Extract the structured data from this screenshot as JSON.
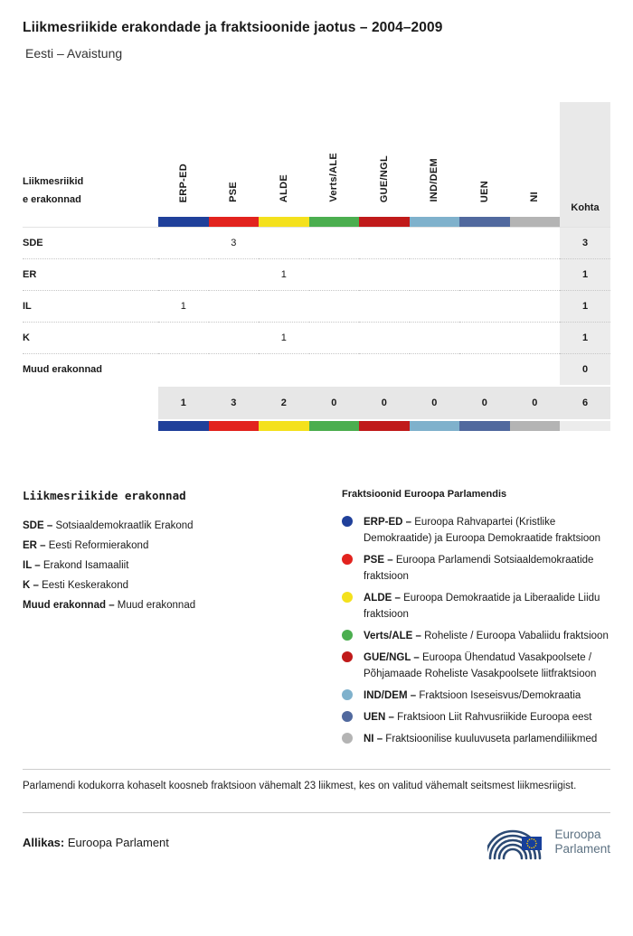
{
  "header": {
    "title": "Liikmesriikide erakondade ja fraktsioonide jaotus – 2004–2009",
    "subtitle": "Eesti – Avaistung"
  },
  "table": {
    "corner_label": "Liikmesriikide erakonnad",
    "seats_label": "Kohta",
    "groups": [
      {
        "id": "ERP-ED",
        "color": "#20409a"
      },
      {
        "id": "PSE",
        "color": "#e2231e"
      },
      {
        "id": "ALDE",
        "color": "#f4e11d"
      },
      {
        "id": "Verts/ALE",
        "color": "#4bae4f"
      },
      {
        "id": "GUE/NGL",
        "color": "#c01a1a"
      },
      {
        "id": "IND/DEM",
        "color": "#7fb1cc"
      },
      {
        "id": "UEN",
        "color": "#51699e"
      },
      {
        "id": "NI",
        "color": "#b4b4b4"
      }
    ],
    "rows": [
      {
        "label": "SDE",
        "values": [
          "",
          "3",
          "",
          "",
          "",
          "",
          "",
          ""
        ],
        "total": "3"
      },
      {
        "label": "ER",
        "values": [
          "",
          "",
          "1",
          "",
          "",
          "",
          "",
          ""
        ],
        "total": "1"
      },
      {
        "label": "IL",
        "values": [
          "1",
          "",
          "",
          "",
          "",
          "",
          "",
          ""
        ],
        "total": "1"
      },
      {
        "label": "K",
        "values": [
          "",
          "",
          "1",
          "",
          "",
          "",
          "",
          ""
        ],
        "total": "1"
      },
      {
        "label": "Muud erakonnad",
        "values": [
          "",
          "",
          "",
          "",
          "",
          "",
          "",
          ""
        ],
        "total": "0"
      }
    ],
    "totals": {
      "values": [
        "1",
        "3",
        "2",
        "0",
        "0",
        "0",
        "0",
        "0"
      ],
      "grand_total": "6"
    }
  },
  "legend_parties": {
    "title": "Liikmesriikide erakonnad",
    "items": [
      {
        "abbr": "SDE",
        "name": "Sotsiaaldemokraatlik Erakond"
      },
      {
        "abbr": "ER",
        "name": "Eesti Reformierakond"
      },
      {
        "abbr": "IL",
        "name": "Erakond Isamaaliit"
      },
      {
        "abbr": "K",
        "name": "Eesti Keskerakond"
      },
      {
        "abbr": "Muud erakonnad",
        "name": "Muud erakonnad"
      }
    ]
  },
  "legend_groups": {
    "title": "Fraktsioonid Euroopa Parlamendis",
    "items": [
      {
        "abbr": "ERP-ED",
        "color": "#20409a",
        "name": "Euroopa Rahvapartei (Kristlike Demokraatide) ja Euroopa Demokraatide fraktsioon"
      },
      {
        "abbr": "PSE",
        "color": "#e2231e",
        "name": "Euroopa Parlamendi Sotsiaaldemokraatide fraktsioon"
      },
      {
        "abbr": "ALDE",
        "color": "#f4e11d",
        "name": "Euroopa Demokraatide ja Liberaalide Liidu fraktsioon"
      },
      {
        "abbr": "Verts/ALE",
        "color": "#4bae4f",
        "name": "Roheliste / Euroopa Vabaliidu fraktsioon"
      },
      {
        "abbr": "GUE/NGL",
        "color": "#c01a1a",
        "name": "Euroopa Ühendatud Vasakpoolsete / Põhjamaade Roheliste Vasakpoolsete liitfraktsioon"
      },
      {
        "abbr": "IND/DEM",
        "color": "#7fb1cc",
        "name": "Fraktsioon Iseseisvus/Demokraatia"
      },
      {
        "abbr": "UEN",
        "color": "#51699e",
        "name": "Fraktsioon Liit Rahvusriikide Euroopa eest"
      },
      {
        "abbr": "NI",
        "color": "#b4b4b4",
        "name": "Fraktsioonilise kuuluvuseta parlamendiliikmed"
      }
    ]
  },
  "footnote": "Parlamendi kodukorra kohaselt koosneb fraktsioon vähemalt 23 liikmest, kes on valitud vähemalt seitsmest liikmesriigist.",
  "footer": {
    "source_label": "Allikas:",
    "source_value": "Euroopa Parlament",
    "logo_line1": "Euroopa",
    "logo_line2": "Parlament"
  },
  "chart_data": {
    "type": "table",
    "title": "Liikmesriikide erakondade ja fraktsioonide jaotus – 2004–2009",
    "subtitle": "Eesti – Avaistung",
    "columns": [
      "ERP-ED",
      "PSE",
      "ALDE",
      "Verts/ALE",
      "GUE/NGL",
      "IND/DEM",
      "UEN",
      "NI",
      "Kohta"
    ],
    "rows": [
      {
        "party": "SDE",
        "seats": {
          "PSE": 3
        },
        "total": 3
      },
      {
        "party": "ER",
        "seats": {
          "ALDE": 1
        },
        "total": 1
      },
      {
        "party": "IL",
        "seats": {
          "ERP-ED": 1
        },
        "total": 1
      },
      {
        "party": "K",
        "seats": {
          "ALDE": 1
        },
        "total": 1
      },
      {
        "party": "Muud erakonnad",
        "seats": {},
        "total": 0
      }
    ],
    "column_totals": [
      1,
      3,
      2,
      0,
      0,
      0,
      0,
      0
    ],
    "grand_total": 6
  }
}
